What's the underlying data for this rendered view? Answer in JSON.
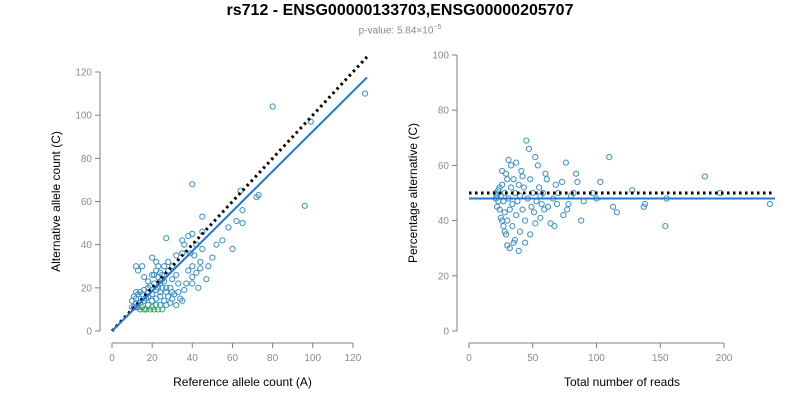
{
  "title": "rs712 - ENSG00000133703,ENSG00000205707",
  "subtitle": {
    "prefix": "p-value: 5.84×10",
    "exponent": "−5"
  },
  "colors": {
    "point": "#3b8fc7",
    "fit_line": "#1f78d1",
    "reference_line": "#000000",
    "axis": "#7f7f7f",
    "tick_label": "#8a8a8a",
    "green_point": "#3aa866"
  },
  "chart_data": [
    {
      "type": "scatter",
      "xlabel": "Reference allele count (A)",
      "ylabel": "Alternative allele count (C)",
      "xlim": [
        0,
        130
      ],
      "ylim": [
        0,
        120
      ],
      "xticks": [
        "0",
        "20",
        "40",
        "60",
        "80",
        "100",
        "120"
      ],
      "yticks": [
        "0",
        "20",
        "40",
        "60",
        "80",
        "100",
        "120"
      ],
      "grid": false,
      "reference_line": {
        "style": "dotted",
        "slope": 1,
        "intercept": 0,
        "x_range": [
          0,
          127
        ]
      },
      "fit_line": {
        "style": "solid",
        "slope": 0.925,
        "intercept": 0,
        "x_range": [
          0,
          127
        ]
      },
      "points": [
        [
          80,
          104
        ],
        [
          99,
          97
        ],
        [
          126,
          110
        ],
        [
          96,
          58
        ],
        [
          40,
          68
        ],
        [
          73,
          63
        ],
        [
          72,
          62
        ],
        [
          64,
          65
        ],
        [
          65,
          56
        ],
        [
          65,
          50
        ],
        [
          62,
          51
        ],
        [
          58,
          48
        ],
        [
          45,
          53
        ],
        [
          45,
          46
        ],
        [
          40,
          45
        ],
        [
          45,
          38
        ],
        [
          42,
          40
        ],
        [
          38,
          44
        ],
        [
          36,
          40
        ],
        [
          35,
          36
        ],
        [
          39,
          36
        ],
        [
          41,
          35
        ],
        [
          44,
          32
        ],
        [
          50,
          34
        ],
        [
          48,
          30
        ],
        [
          40,
          30
        ],
        [
          38,
          28
        ],
        [
          40,
          25
        ],
        [
          40,
          22
        ],
        [
          43,
          20
        ],
        [
          35,
          42
        ],
        [
          32,
          35
        ],
        [
          30,
          30
        ],
        [
          28,
          28
        ],
        [
          32,
          26
        ],
        [
          27,
          43
        ],
        [
          28,
          32
        ],
        [
          30,
          24
        ],
        [
          33,
          22
        ],
        [
          34,
          15
        ],
        [
          30,
          18
        ],
        [
          27,
          20
        ],
        [
          25,
          20
        ],
        [
          23,
          30
        ],
        [
          22,
          32
        ],
        [
          20,
          34
        ],
        [
          22,
          28
        ],
        [
          20,
          26
        ],
        [
          21,
          22
        ],
        [
          19,
          21
        ],
        [
          18,
          20
        ],
        [
          24,
          27
        ],
        [
          26,
          23
        ],
        [
          25,
          24
        ],
        [
          23,
          25
        ],
        [
          24,
          18
        ],
        [
          22,
          19
        ],
        [
          20,
          17
        ],
        [
          18,
          16
        ],
        [
          17,
          15
        ],
        [
          15,
          17
        ],
        [
          14,
          18
        ],
        [
          13,
          17
        ],
        [
          12,
          18
        ],
        [
          12,
          15
        ],
        [
          11,
          16
        ],
        [
          10,
          14
        ],
        [
          12,
          13
        ],
        [
          14,
          13
        ],
        [
          16,
          14
        ],
        [
          15,
          11
        ],
        [
          13,
          11
        ],
        [
          12,
          11
        ],
        [
          11,
          11
        ],
        [
          10,
          11
        ],
        [
          16,
          10
        ],
        [
          18,
          12
        ],
        [
          20,
          11
        ],
        [
          22,
          12
        ],
        [
          24,
          12
        ],
        [
          26,
          14
        ],
        [
          28,
          16
        ],
        [
          30,
          15
        ],
        [
          32,
          12
        ],
        [
          35,
          14
        ],
        [
          15,
          30
        ],
        [
          13,
          28
        ],
        [
          12,
          30
        ],
        [
          16,
          25
        ],
        [
          18,
          23
        ],
        [
          21,
          26
        ],
        [
          23,
          20
        ],
        [
          24,
          16
        ],
        [
          25,
          26
        ],
        [
          26,
          30
        ],
        [
          29,
          20
        ],
        [
          31,
          17
        ],
        [
          33,
          18
        ],
        [
          36,
          19
        ],
        [
          37,
          22
        ],
        [
          42,
          27
        ],
        [
          44,
          29
        ],
        [
          47,
          24
        ],
        [
          52,
          40
        ],
        [
          55,
          42
        ],
        [
          60,
          38
        ],
        [
          19,
          10
        ],
        [
          17,
          10
        ],
        [
          14,
          10
        ],
        [
          21,
          10
        ],
        [
          23,
          10
        ],
        [
          25,
          10
        ],
        [
          27,
          12
        ],
        [
          20,
          14
        ],
        [
          18,
          18
        ],
        [
          16,
          19
        ],
        [
          22,
          15
        ],
        [
          24,
          22
        ],
        [
          27,
          18
        ],
        [
          29,
          13
        ]
      ]
    },
    {
      "type": "scatter",
      "xlabel": "Total number of reads",
      "ylabel": "Percentage alternative (C)",
      "xlim": [
        0,
        240
      ],
      "ylim": [
        0,
        100
      ],
      "xticks": [
        "0",
        "50",
        "100",
        "150",
        "200"
      ],
      "yticks": [
        "0",
        "20",
        "40",
        "60",
        "80",
        "100"
      ],
      "grid": false,
      "reference_line": {
        "style": "dotted",
        "y": 50
      },
      "fit_line": {
        "style": "solid",
        "y": 48
      },
      "points": [
        [
          236,
          46
        ],
        [
          185,
          56
        ],
        [
          197,
          50
        ],
        [
          155,
          48
        ],
        [
          154,
          38
        ],
        [
          138,
          46
        ],
        [
          137,
          45
        ],
        [
          128,
          51
        ],
        [
          110,
          63
        ],
        [
          116,
          43
        ],
        [
          113,
          45
        ],
        [
          103,
          54
        ],
        [
          100,
          48
        ],
        [
          97,
          50
        ],
        [
          90,
          47
        ],
        [
          88,
          40
        ],
        [
          85,
          54
        ],
        [
          84,
          57
        ],
        [
          82,
          50
        ],
        [
          80,
          49
        ],
        [
          78,
          46
        ],
        [
          77,
          44
        ],
        [
          76,
          61
        ],
        [
          74,
          42
        ],
        [
          73,
          54
        ],
        [
          70,
          50
        ],
        [
          69,
          46
        ],
        [
          68,
          53
        ],
        [
          67,
          38
        ],
        [
          66,
          48
        ],
        [
          64,
          39
        ],
        [
          62,
          45
        ],
        [
          61,
          55
        ],
        [
          60,
          57
        ],
        [
          59,
          44
        ],
        [
          58,
          50
        ],
        [
          57,
          46
        ],
        [
          56,
          49
        ],
        [
          55,
          52
        ],
        [
          54,
          60
        ],
        [
          53,
          47
        ],
        [
          52,
          63
        ],
        [
          51,
          43
        ],
        [
          50,
          50
        ],
        [
          49,
          45
        ],
        [
          48,
          55
        ],
        [
          47,
          66
        ],
        [
          46,
          48
        ],
        [
          45,
          69
        ],
        [
          44,
          40
        ],
        [
          43,
          52
        ],
        [
          42,
          56
        ],
        [
          42,
          44
        ],
        [
          41,
          58
        ],
        [
          40,
          49
        ],
        [
          40,
          36
        ],
        [
          39,
          53
        ],
        [
          38,
          47
        ],
        [
          37,
          61
        ],
        [
          37,
          42
        ],
        [
          36,
          50
        ],
        [
          35,
          55
        ],
        [
          35,
          32
        ],
        [
          34,
          46
        ],
        [
          34,
          38
        ],
        [
          33,
          60
        ],
        [
          33,
          52
        ],
        [
          32,
          44
        ],
        [
          32,
          30
        ],
        [
          31,
          62
        ],
        [
          31,
          48
        ],
        [
          30,
          40
        ],
        [
          30,
          55
        ],
        [
          29,
          57
        ],
        [
          29,
          35
        ],
        [
          28,
          50
        ],
        [
          28,
          43
        ],
        [
          27,
          47
        ],
        [
          27,
          38
        ],
        [
          26,
          53
        ],
        [
          26,
          58
        ],
        [
          25,
          41
        ],
        [
          25,
          49
        ],
        [
          24,
          52
        ],
        [
          24,
          44
        ],
        [
          23,
          47
        ],
        [
          23,
          51
        ],
        [
          22,
          45
        ],
        [
          22,
          49
        ],
        [
          21,
          48
        ],
        [
          21,
          50
        ],
        [
          36,
          33
        ],
        [
          39,
          29
        ],
        [
          44,
          32
        ],
        [
          48,
          35
        ],
        [
          52,
          39
        ],
        [
          56,
          41
        ],
        [
          30,
          31
        ],
        [
          28,
          36
        ],
        [
          26,
          40
        ]
      ]
    }
  ]
}
